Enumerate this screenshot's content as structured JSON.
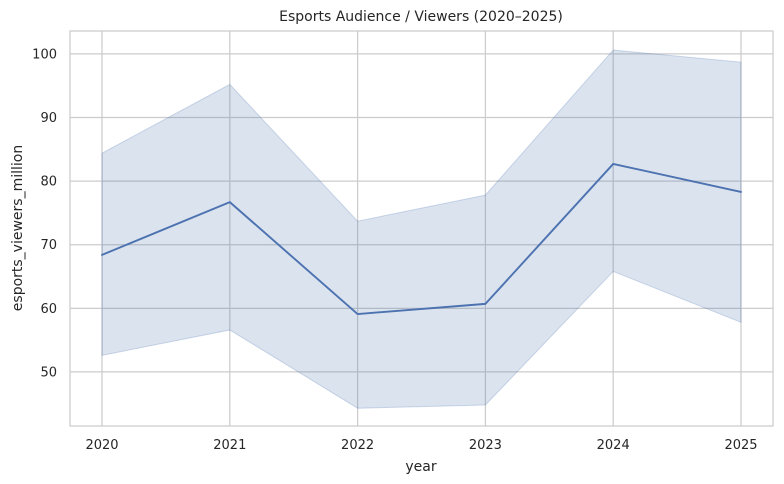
{
  "chart_data": {
    "type": "line",
    "title": "Esports Audience / Viewers (2020–2025)",
    "xlabel": "year",
    "ylabel": "esports_viewers_million",
    "x": [
      "2020",
      "2021",
      "2022",
      "2023",
      "2024",
      "2025"
    ],
    "series": [
      {
        "name": "esports_viewers_million",
        "values": [
          68.4,
          76.7,
          59.1,
          60.7,
          82.7,
          78.3
        ],
        "ci_lower": [
          52.6,
          56.6,
          44.3,
          44.8,
          65.8,
          57.8
        ],
        "ci_upper": [
          84.4,
          95.2,
          73.7,
          77.8,
          100.6,
          98.7
        ]
      }
    ],
    "yticks": [
      50,
      60,
      70,
      80,
      90,
      100
    ],
    "ylim": [
      41.5,
      103.6
    ],
    "grid": true,
    "colors": {
      "line": "#4c72b0",
      "band": "#4c72b0",
      "grid": "#cccccc",
      "spine": "#cccccc",
      "text": "#262626"
    }
  }
}
